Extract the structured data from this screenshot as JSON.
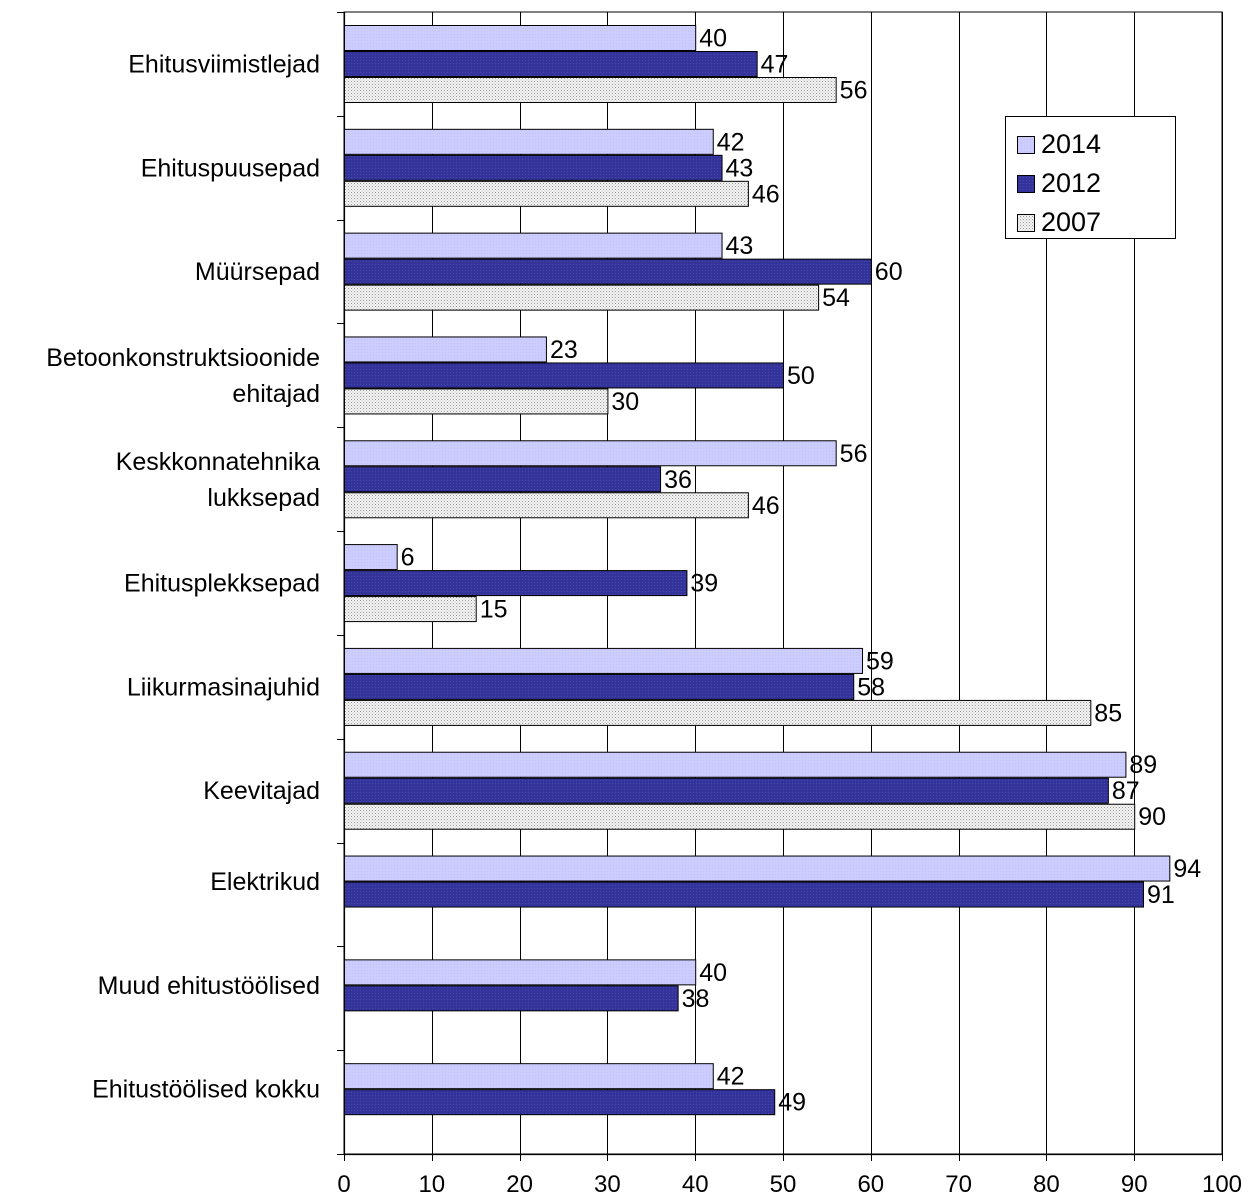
{
  "chart_data": {
    "type": "bar",
    "orientation": "horizontal",
    "title": "",
    "xlabel": "",
    "ylabel": "",
    "xlim": [
      0,
      100
    ],
    "x_ticks": [
      0,
      10,
      20,
      30,
      40,
      50,
      60,
      70,
      80,
      90,
      100
    ],
    "grid": "vertical",
    "legend_position": "top-right",
    "categories": [
      [
        "Ehitusviimistlejad"
      ],
      [
        "Ehituspuusepad"
      ],
      [
        "Müürsepad"
      ],
      [
        "Betoonkonstruktsioonide",
        "ehitajad"
      ],
      [
        "Keskkonnatehnika",
        "lukksepad"
      ],
      [
        "Ehitusplekksepad"
      ],
      [
        "Liikurmasinajuhid"
      ],
      [
        "Keevitajad"
      ],
      [
        "Elektrikud"
      ],
      [
        "Muud ehitustöölised"
      ],
      [
        "Ehitustöölised kokku"
      ]
    ],
    "series": [
      {
        "name": "2014",
        "color": "#ccccff",
        "fill_style": "solid",
        "values": [
          40,
          42,
          43,
          23,
          56,
          6,
          59,
          89,
          94,
          40,
          42
        ]
      },
      {
        "name": "2012",
        "color": "#33339a",
        "fill_style": "solid-dark",
        "values": [
          47,
          43,
          60,
          50,
          36,
          39,
          58,
          87,
          91,
          38,
          49
        ]
      },
      {
        "name": "2007",
        "color": "#e8e8e8",
        "fill_style": "dotted",
        "values": [
          56,
          46,
          54,
          30,
          46,
          15,
          85,
          90,
          null,
          null,
          null
        ]
      }
    ]
  }
}
